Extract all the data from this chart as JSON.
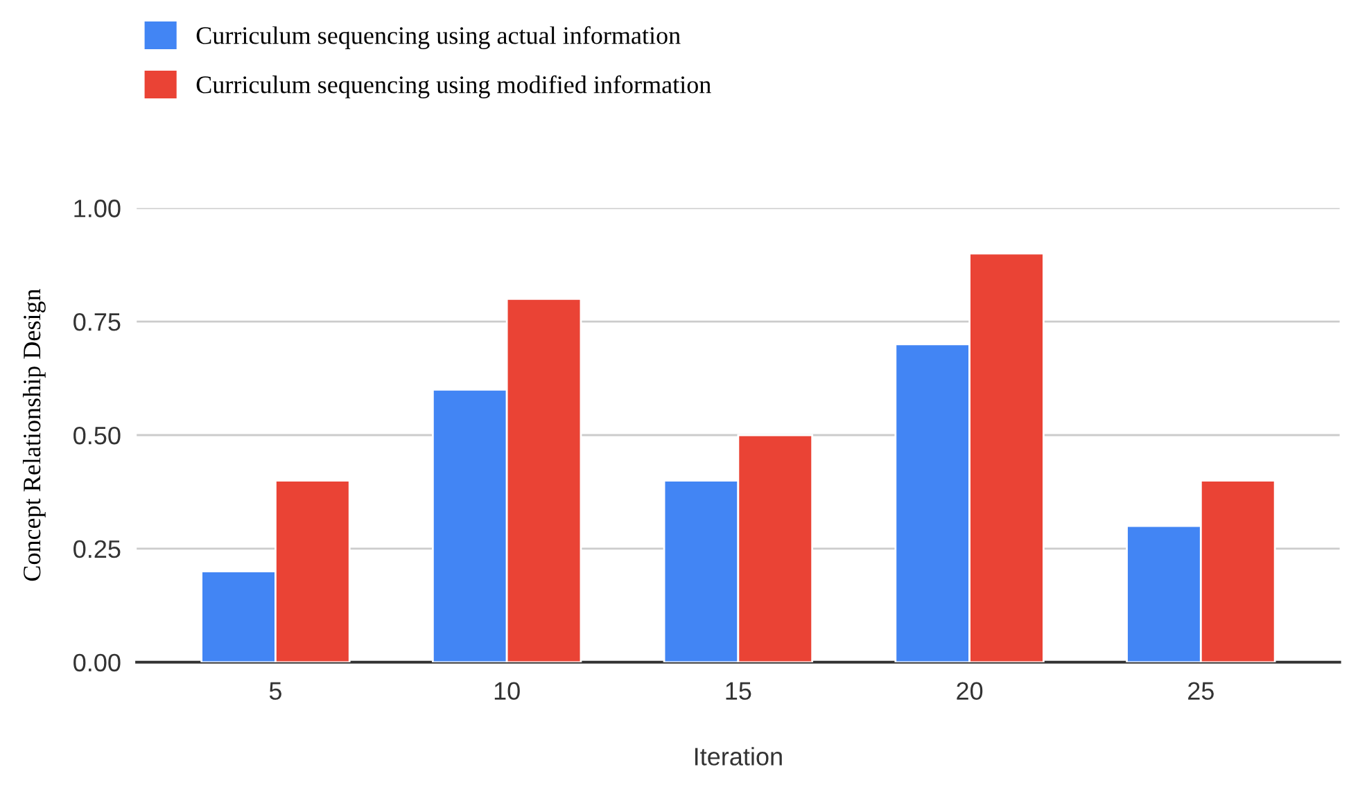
{
  "chart_data": {
    "type": "bar",
    "xlabel": "Iteration",
    "ylabel": "Concept Relationship Design",
    "categories": [
      "5",
      "10",
      "15",
      "20",
      "25"
    ],
    "series": [
      {
        "name": "Curriculum sequencing using actual information",
        "color": "#4285f4",
        "values": [
          0.2,
          0.6,
          0.4,
          0.7,
          0.3
        ]
      },
      {
        "name": "Curriculum sequencing using modified information",
        "color": "#ea4335",
        "values": [
          0.4,
          0.8,
          0.5,
          0.9,
          0.4
        ]
      }
    ],
    "ylim": [
      0,
      1.0
    ],
    "yticks": [
      {
        "value": 0,
        "label": "0.00"
      },
      {
        "value": 0.25,
        "label": "0.25"
      },
      {
        "value": 0.5,
        "label": "0.50"
      },
      {
        "value": 0.75,
        "label": "0.75"
      },
      {
        "value": 1.0,
        "label": "1.00"
      }
    ],
    "grid": "y",
    "legend": "top left"
  }
}
